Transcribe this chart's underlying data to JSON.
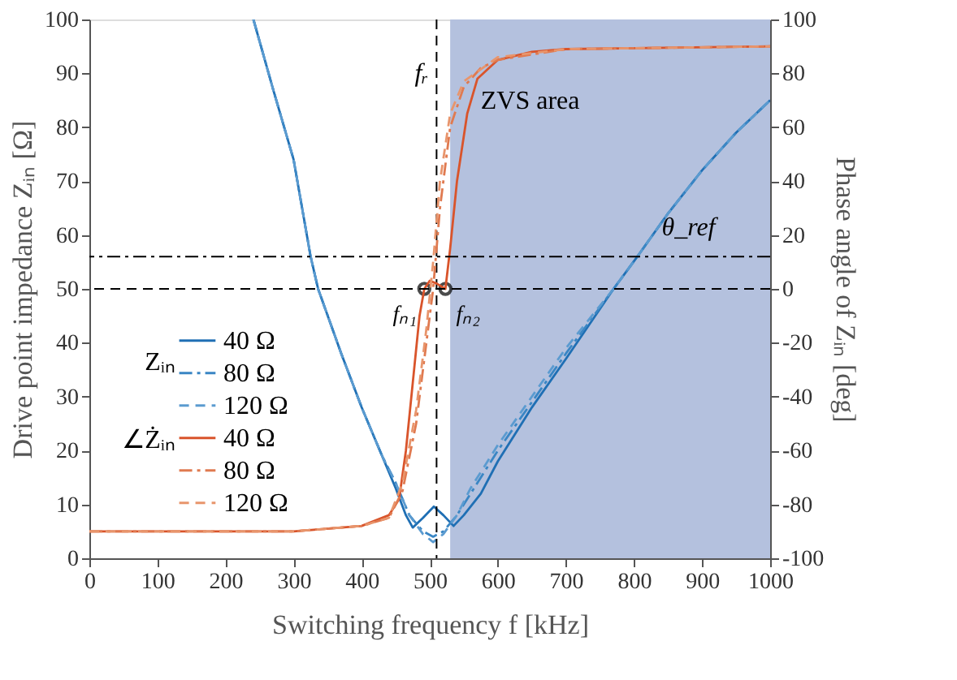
{
  "chart_data": {
    "type": "line",
    "xlabel": "Switching frequency f  [kHz]",
    "ylabel": "Drive point impedance Zᵢₙ [Ω]",
    "y2label": "Phase angle of Zᵢₙ [deg]",
    "xlim": [
      0,
      1000
    ],
    "xticks": [
      0,
      100,
      200,
      300,
      400,
      500,
      600,
      700,
      800,
      900,
      {
        "value": 1000,
        "label": "1000"
      }
    ],
    "ylim": [
      0,
      100
    ],
    "yticks": [
      0,
      10,
      20,
      30,
      40,
      50,
      60,
      70,
      80,
      90,
      100
    ],
    "y2lim": [
      -100,
      100
    ],
    "y2ticks": [
      -100,
      -80,
      -60,
      -40,
      -20,
      0,
      20,
      40,
      60,
      80,
      100
    ],
    "grid": false,
    "legend": "bottom left",
    "series": [
      {
        "name": "40 Ω",
        "color": "#1f6fb4",
        "line_style": "solid",
        "x": [
          241,
          270,
          300,
          325,
          336,
          370,
          400,
          430,
          450,
          465,
          475,
          490,
          506,
          520,
          535,
          550,
          575,
          600,
          650,
          700,
          770,
          805,
          850,
          900,
          950,
          1000
        ],
        "values": [
          100,
          87,
          74,
          56,
          50,
          38,
          28,
          19,
          13,
          8,
          5.7,
          7.5,
          9.6,
          8,
          6,
          8,
          12,
          18,
          28,
          37,
          50,
          56,
          64,
          72,
          79,
          85
        ]
      },
      {
        "name": "80 Ω",
        "color": "#3a86c4",
        "line_style": "dashdot",
        "x": [
          241,
          270,
          300,
          325,
          336,
          370,
          400,
          430,
          450,
          470,
          490,
          505,
          520,
          540,
          560,
          600,
          650,
          700,
          770,
          805,
          850,
          900,
          950,
          1000
        ],
        "values": [
          100,
          87,
          74,
          56,
          50,
          38,
          28,
          19,
          14,
          8,
          5,
          4,
          5,
          8,
          12,
          20,
          29,
          38,
          50,
          56,
          64,
          72,
          79,
          85
        ]
      },
      {
        "name": "120 Ω",
        "color": "#5b9bd0",
        "line_style": "dashed",
        "x": [
          241,
          270,
          300,
          325,
          336,
          370,
          400,
          430,
          450,
          470,
          490,
          505,
          520,
          540,
          560,
          600,
          650,
          700,
          770,
          805,
          850,
          900,
          950,
          1000
        ],
        "values": [
          100,
          87,
          74,
          56,
          50,
          38,
          28,
          19,
          14,
          8,
          4.5,
          3,
          4.5,
          8,
          13,
          21,
          30,
          39,
          50,
          56,
          64,
          72,
          79,
          85
        ]
      },
      {
        "name": "40 Ω",
        "color": "#d9542b",
        "line_style": "solid",
        "axis": "y2",
        "x": [
          0,
          300,
          400,
          440,
          455,
          465,
          475,
          485,
          492,
          500,
          510,
          523,
          530,
          540,
          555,
          570,
          600,
          650,
          700,
          1000
        ],
        "values": [
          -90,
          -90,
          -88,
          -84,
          -78,
          -60,
          -35,
          -10,
          0,
          3,
          2,
          0,
          15,
          40,
          65,
          78,
          85,
          88,
          89,
          90
        ]
      },
      {
        "name": "80 Ω",
        "color": "#e07a50",
        "line_style": "dashdot",
        "axis": "y2",
        "x": [
          0,
          300,
          400,
          440,
          460,
          480,
          495,
          505,
          515,
          530,
          550,
          575,
          600,
          700,
          1000
        ],
        "values": [
          -90,
          -90,
          -88,
          -85,
          -75,
          -50,
          -20,
          0,
          30,
          60,
          75,
          82,
          85,
          89,
          90
        ]
      },
      {
        "name": "120 Ω",
        "color": "#e8956c",
        "line_style": "dashed",
        "axis": "y2",
        "x": [
          0,
          300,
          400,
          440,
          460,
          480,
          495,
          505,
          515,
          530,
          550,
          600,
          700,
          1000
        ],
        "values": [
          -90,
          -90,
          -88,
          -85,
          -72,
          -45,
          -15,
          10,
          40,
          65,
          77,
          86,
          89,
          90
        ]
      }
    ],
    "ref_lines": [
      {
        "axis": "x",
        "value": 510,
        "label": "fᵣ",
        "line_style": "dashed",
        "color": "#000000"
      },
      {
        "axis": "y2",
        "value": 0,
        "label": null,
        "line_style": "dashed",
        "color": "#000000"
      },
      {
        "axis": "y2",
        "value": 12,
        "label": "θ_ref",
        "line_style": "dashdot",
        "color": "#000000"
      }
    ],
    "bands": [
      {
        "axis": "x",
        "from": 530,
        "to": 1000,
        "label": "ZVS area",
        "color": "#b4c1de"
      }
    ],
    "annotations": [
      {
        "text": "fₙ₁",
        "x": 492,
        "y": 50
      },
      {
        "text": "fₙ₂",
        "x": 523,
        "y": 50
      },
      "Zᵢₙ",
      "∠Żᵢₙ"
    ]
  }
}
